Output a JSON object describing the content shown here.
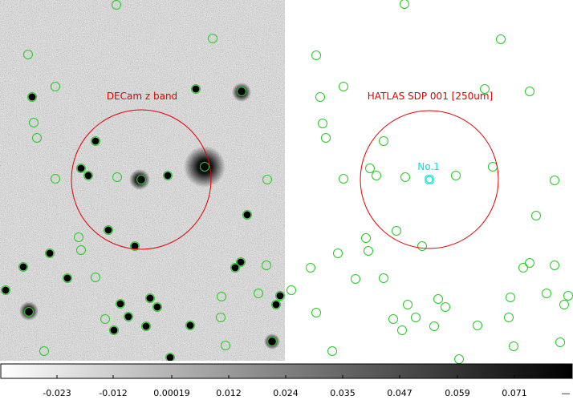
{
  "left_panel": {
    "label": "DECam z band",
    "label_color": "#e00000",
    "circle_color": "#e00000",
    "marker_color": "#22cc22"
  },
  "right_panel": {
    "label": "HATLAS SDP 001 [250um]",
    "label_color": "#e00000",
    "circle_color": "#e00000",
    "marker_color": "#22cc22",
    "source": {
      "label": "No.1",
      "color": "#00e5e5"
    }
  },
  "colorbar": {
    "ticks": [
      "-0.023",
      "-0.012",
      "0.00019",
      "0.012",
      "0.024",
      "0.035",
      "0.047",
      "0.059",
      "0.071"
    ],
    "from_color": "#ffffff",
    "to_color": "#000000",
    "corner_mark": "—"
  }
}
